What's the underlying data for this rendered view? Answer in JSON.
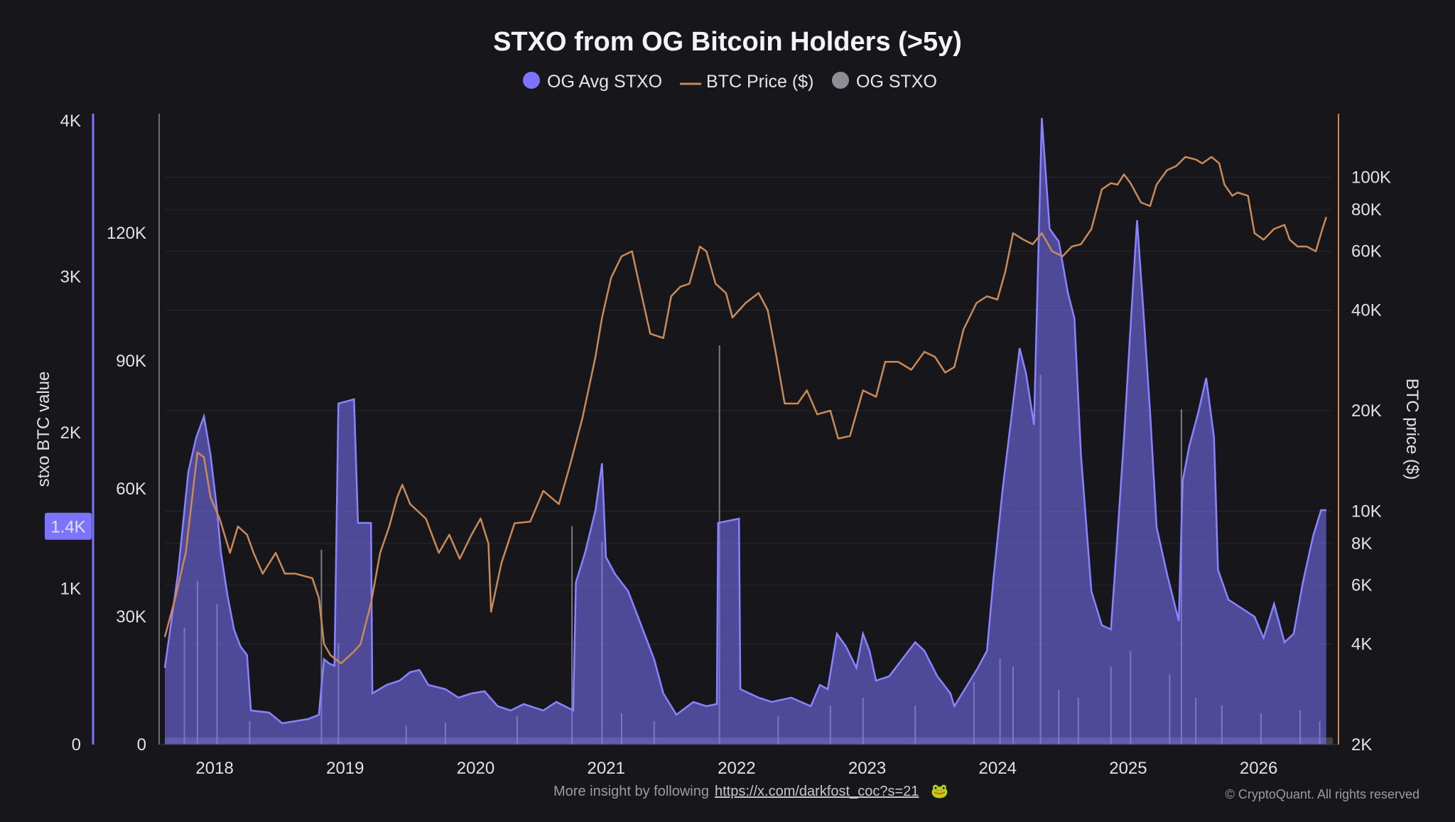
{
  "chart_data": {
    "type": "area",
    "title": "STXO from OG Bitcoin Holders (>5y)",
    "legend": {
      "placement": "top-center",
      "entries": [
        {
          "name": "OG Avg STXO",
          "marker": "dot",
          "color": "#7c74ff"
        },
        {
          "name": "BTC Price ($)",
          "marker": "line",
          "color": "#c98a5a"
        },
        {
          "name": "OG STXO",
          "marker": "dot",
          "color": "#8d8d96"
        }
      ]
    },
    "watermark": "CryptoQuant",
    "x_axis": {
      "ticks": [
        "2018",
        "2019",
        "2020",
        "2021",
        "2022",
        "2023",
        "2024",
        "2025",
        "2026"
      ],
      "range": [
        2017.7,
        2026.65
      ]
    },
    "y_axis_left_outer": {
      "label": "stxo BTC value",
      "ticks": [
        "0",
        "1K",
        "2K",
        "3K",
        "4K"
      ],
      "range": [
        0,
        4000
      ],
      "highlight_value": "1.4K",
      "highlight_numeric": 1400
    },
    "y_axis_left_inner": {
      "ticks": [
        "0",
        "30K",
        "60K",
        "90K",
        "120K"
      ],
      "range": [
        0,
        148000
      ]
    },
    "y_axis_right": {
      "label": "BTC price ($)",
      "scale": "log",
      "ticks": [
        "2K",
        "4K",
        "6K",
        "8K",
        "10K",
        "20K",
        "40K",
        "60K",
        "80K",
        "100K"
      ],
      "tick_values": [
        2000,
        4000,
        6000,
        8000,
        10000,
        20000,
        40000,
        60000,
        80000,
        100000
      ],
      "range": [
        2000,
        155000
      ]
    },
    "grid": true,
    "series": [
      {
        "name": "OG Avg STXO",
        "axis": "left_inner",
        "type": "area",
        "color": "#7c74ff",
        "points": [
          [
            2017.7,
            18000
          ],
          [
            2017.8,
            40000
          ],
          [
            2017.88,
            64000
          ],
          [
            2017.94,
            72000
          ],
          [
            2018.0,
            77000
          ],
          [
            2018.05,
            68000
          ],
          [
            2018.1,
            55000
          ],
          [
            2018.13,
            45000
          ],
          [
            2018.18,
            35000
          ],
          [
            2018.23,
            27000
          ],
          [
            2018.28,
            23000
          ],
          [
            2018.33,
            21000
          ],
          [
            2018.36,
            8000
          ],
          [
            2018.5,
            7500
          ],
          [
            2018.6,
            5000
          ],
          [
            2018.7,
            5500
          ],
          [
            2018.8,
            6000
          ],
          [
            2018.88,
            7000
          ],
          [
            2018.92,
            20000
          ],
          [
            2018.96,
            19000
          ],
          [
            2019.0,
            18500
          ],
          [
            2019.03,
            80000
          ],
          [
            2019.15,
            81000
          ],
          [
            2019.18,
            52000
          ],
          [
            2019.28,
            52000
          ],
          [
            2019.29,
            12000
          ],
          [
            2019.4,
            14000
          ],
          [
            2019.5,
            15000
          ],
          [
            2019.58,
            17000
          ],
          [
            2019.65,
            17500
          ],
          [
            2019.72,
            14000
          ],
          [
            2019.85,
            13000
          ],
          [
            2019.95,
            11000
          ],
          [
            2020.05,
            12000
          ],
          [
            2020.15,
            12500
          ],
          [
            2020.25,
            9000
          ],
          [
            2020.35,
            8000
          ],
          [
            2020.45,
            9500
          ],
          [
            2020.6,
            8000
          ],
          [
            2020.7,
            10000
          ],
          [
            2020.83,
            8000
          ],
          [
            2020.85,
            38000
          ],
          [
            2020.92,
            45000
          ],
          [
            2021.0,
            55000
          ],
          [
            2021.05,
            66000
          ],
          [
            2021.08,
            44000
          ],
          [
            2021.15,
            40000
          ],
          [
            2021.25,
            36000
          ],
          [
            2021.35,
            28000
          ],
          [
            2021.45,
            20000
          ],
          [
            2021.52,
            12000
          ],
          [
            2021.62,
            7000
          ],
          [
            2021.75,
            10000
          ],
          [
            2021.85,
            9000
          ],
          [
            2021.93,
            9500
          ],
          [
            2021.94,
            52000
          ],
          [
            2022.1,
            53000
          ],
          [
            2022.11,
            13000
          ],
          [
            2022.25,
            11000
          ],
          [
            2022.35,
            10000
          ],
          [
            2022.5,
            11000
          ],
          [
            2022.65,
            9000
          ],
          [
            2022.72,
            14000
          ],
          [
            2022.78,
            13000
          ],
          [
            2022.85,
            26000
          ],
          [
            2022.92,
            23000
          ],
          [
            2023.0,
            18000
          ],
          [
            2023.05,
            26000
          ],
          [
            2023.1,
            22000
          ],
          [
            2023.15,
            15000
          ],
          [
            2023.25,
            16000
          ],
          [
            2023.35,
            20000
          ],
          [
            2023.45,
            24000
          ],
          [
            2023.52,
            22000
          ],
          [
            2023.62,
            16000
          ],
          [
            2023.72,
            12000
          ],
          [
            2023.75,
            9000
          ],
          [
            2023.85,
            14000
          ],
          [
            2023.93,
            18000
          ],
          [
            2024.0,
            22000
          ],
          [
            2024.05,
            39000
          ],
          [
            2024.12,
            60000
          ],
          [
            2024.18,
            75000
          ],
          [
            2024.25,
            93000
          ],
          [
            2024.3,
            87000
          ],
          [
            2024.36,
            75000
          ],
          [
            2024.42,
            147000
          ],
          [
            2024.48,
            121000
          ],
          [
            2024.55,
            118000
          ],
          [
            2024.62,
            106000
          ],
          [
            2024.67,
            100000
          ],
          [
            2024.72,
            68000
          ],
          [
            2024.8,
            36000
          ],
          [
            2024.88,
            28000
          ],
          [
            2024.95,
            27000
          ],
          [
            2025.0,
            49000
          ],
          [
            2025.05,
            72000
          ],
          [
            2025.1,
            98000
          ],
          [
            2025.15,
            123000
          ],
          [
            2025.2,
            101000
          ],
          [
            2025.25,
            78000
          ],
          [
            2025.3,
            51000
          ],
          [
            2025.38,
            40000
          ],
          [
            2025.47,
            29000
          ],
          [
            2025.5,
            62000
          ],
          [
            2025.55,
            70000
          ],
          [
            2025.62,
            78000
          ],
          [
            2025.68,
            86000
          ],
          [
            2025.74,
            72000
          ],
          [
            2025.77,
            41000
          ],
          [
            2025.85,
            34000
          ],
          [
            2025.95,
            32000
          ],
          [
            2026.05,
            30000
          ],
          [
            2026.12,
            25000
          ],
          [
            2026.2,
            33000
          ],
          [
            2026.28,
            24000
          ],
          [
            2026.35,
            26000
          ],
          [
            2026.42,
            38000
          ],
          [
            2026.5,
            49000
          ],
          [
            2026.56,
            55000
          ],
          [
            2026.6,
            55000
          ]
        ]
      },
      {
        "name": "BTC Price ($)",
        "axis": "right",
        "type": "line",
        "color": "#c98a5a",
        "points": [
          [
            2017.7,
            4200
          ],
          [
            2017.78,
            5500
          ],
          [
            2017.86,
            7500
          ],
          [
            2017.95,
            15000
          ],
          [
            2018.0,
            14500
          ],
          [
            2018.05,
            11000
          ],
          [
            2018.12,
            9500
          ],
          [
            2018.2,
            7500
          ],
          [
            2018.26,
            9000
          ],
          [
            2018.33,
            8500
          ],
          [
            2018.38,
            7500
          ],
          [
            2018.45,
            6500
          ],
          [
            2018.55,
            7500
          ],
          [
            2018.62,
            6500
          ],
          [
            2018.7,
            6500
          ],
          [
            2018.83,
            6300
          ],
          [
            2018.88,
            5500
          ],
          [
            2018.92,
            4000
          ],
          [
            2018.97,
            3700
          ],
          [
            2019.05,
            3500
          ],
          [
            2019.15,
            3800
          ],
          [
            2019.2,
            4000
          ],
          [
            2019.28,
            5300
          ],
          [
            2019.35,
            7500
          ],
          [
            2019.42,
            9000
          ],
          [
            2019.48,
            11000
          ],
          [
            2019.52,
            12000
          ],
          [
            2019.58,
            10500
          ],
          [
            2019.7,
            9500
          ],
          [
            2019.8,
            7500
          ],
          [
            2019.88,
            8500
          ],
          [
            2019.96,
            7200
          ],
          [
            2020.05,
            8500
          ],
          [
            2020.12,
            9500
          ],
          [
            2020.18,
            8000
          ],
          [
            2020.2,
            5000
          ],
          [
            2020.28,
            7000
          ],
          [
            2020.38,
            9200
          ],
          [
            2020.5,
            9300
          ],
          [
            2020.6,
            11500
          ],
          [
            2020.72,
            10500
          ],
          [
            2020.8,
            13500
          ],
          [
            2020.9,
            19000
          ],
          [
            2021.0,
            29000
          ],
          [
            2021.05,
            38000
          ],
          [
            2021.12,
            50000
          ],
          [
            2021.2,
            58000
          ],
          [
            2021.28,
            60000
          ],
          [
            2021.35,
            45000
          ],
          [
            2021.42,
            34000
          ],
          [
            2021.52,
            33000
          ],
          [
            2021.58,
            44000
          ],
          [
            2021.65,
            47000
          ],
          [
            2021.72,
            48000
          ],
          [
            2021.8,
            62000
          ],
          [
            2021.85,
            60000
          ],
          [
            2021.92,
            48000
          ],
          [
            2022.0,
            45000
          ],
          [
            2022.05,
            38000
          ],
          [
            2022.15,
            42000
          ],
          [
            2022.25,
            45000
          ],
          [
            2022.32,
            40000
          ],
          [
            2022.38,
            30000
          ],
          [
            2022.45,
            21000
          ],
          [
            2022.55,
            21000
          ],
          [
            2022.62,
            23000
          ],
          [
            2022.7,
            19500
          ],
          [
            2022.8,
            20000
          ],
          [
            2022.86,
            16500
          ],
          [
            2022.95,
            16800
          ],
          [
            2023.05,
            23000
          ],
          [
            2023.15,
            22000
          ],
          [
            2023.22,
            28000
          ],
          [
            2023.32,
            28000
          ],
          [
            2023.42,
            26500
          ],
          [
            2023.52,
            30000
          ],
          [
            2023.6,
            29000
          ],
          [
            2023.68,
            26000
          ],
          [
            2023.75,
            27000
          ],
          [
            2023.82,
            35000
          ],
          [
            2023.92,
            42000
          ],
          [
            2024.0,
            44000
          ],
          [
            2024.08,
            43000
          ],
          [
            2024.14,
            52000
          ],
          [
            2024.2,
            68000
          ],
          [
            2024.28,
            65000
          ],
          [
            2024.35,
            63000
          ],
          [
            2024.42,
            68000
          ],
          [
            2024.5,
            60000
          ],
          [
            2024.58,
            58000
          ],
          [
            2024.65,
            62000
          ],
          [
            2024.72,
            63000
          ],
          [
            2024.8,
            70000
          ],
          [
            2024.88,
            92000
          ],
          [
            2024.95,
            96000
          ],
          [
            2025.0,
            95000
          ],
          [
            2025.05,
            102000
          ],
          [
            2025.1,
            96000
          ],
          [
            2025.18,
            84000
          ],
          [
            2025.25,
            82000
          ],
          [
            2025.3,
            95000
          ],
          [
            2025.38,
            105000
          ],
          [
            2025.45,
            108000
          ],
          [
            2025.52,
            115000
          ],
          [
            2025.6,
            113000
          ],
          [
            2025.65,
            110000
          ],
          [
            2025.72,
            115000
          ],
          [
            2025.78,
            110000
          ],
          [
            2025.82,
            95000
          ],
          [
            2025.88,
            88000
          ],
          [
            2025.92,
            90000
          ],
          [
            2026.0,
            88000
          ],
          [
            2026.05,
            68000
          ],
          [
            2026.12,
            65000
          ],
          [
            2026.2,
            70000
          ],
          [
            2026.28,
            72000
          ],
          [
            2026.32,
            65000
          ],
          [
            2026.38,
            62000
          ],
          [
            2026.45,
            62000
          ],
          [
            2026.52,
            60000
          ],
          [
            2026.57,
            70000
          ],
          [
            2026.6,
            76000
          ]
        ]
      },
      {
        "name": "OG STXO",
        "axis": "left_outer",
        "type": "spikes",
        "color": "#8d8d96",
        "spikes": [
          [
            2017.85,
            750
          ],
          [
            2017.95,
            1050
          ],
          [
            2018.1,
            900
          ],
          [
            2018.35,
            150
          ],
          [
            2018.9,
            1250
          ],
          [
            2019.03,
            650
          ],
          [
            2019.55,
            120
          ],
          [
            2019.85,
            140
          ],
          [
            2020.4,
            180
          ],
          [
            2020.82,
            1400
          ],
          [
            2021.05,
            1300
          ],
          [
            2021.2,
            200
          ],
          [
            2021.45,
            150
          ],
          [
            2021.95,
            2560
          ],
          [
            2022.4,
            180
          ],
          [
            2022.8,
            250
          ],
          [
            2023.05,
            300
          ],
          [
            2023.45,
            250
          ],
          [
            2023.9,
            400
          ],
          [
            2024.1,
            550
          ],
          [
            2024.2,
            500
          ],
          [
            2024.41,
            2370
          ],
          [
            2024.55,
            350
          ],
          [
            2024.7,
            300
          ],
          [
            2024.95,
            500
          ],
          [
            2025.1,
            600
          ],
          [
            2025.4,
            450
          ],
          [
            2025.49,
            2150
          ],
          [
            2025.6,
            300
          ],
          [
            2025.8,
            250
          ],
          [
            2026.1,
            200
          ],
          [
            2026.4,
            220
          ],
          [
            2026.55,
            150
          ]
        ]
      }
    ]
  },
  "footer": {
    "text": "More insight by following",
    "link": "https://x.com/darkfost_coc?s=21",
    "emoji": "🐸",
    "copyright": "© CryptoQuant. All rights reserved"
  }
}
